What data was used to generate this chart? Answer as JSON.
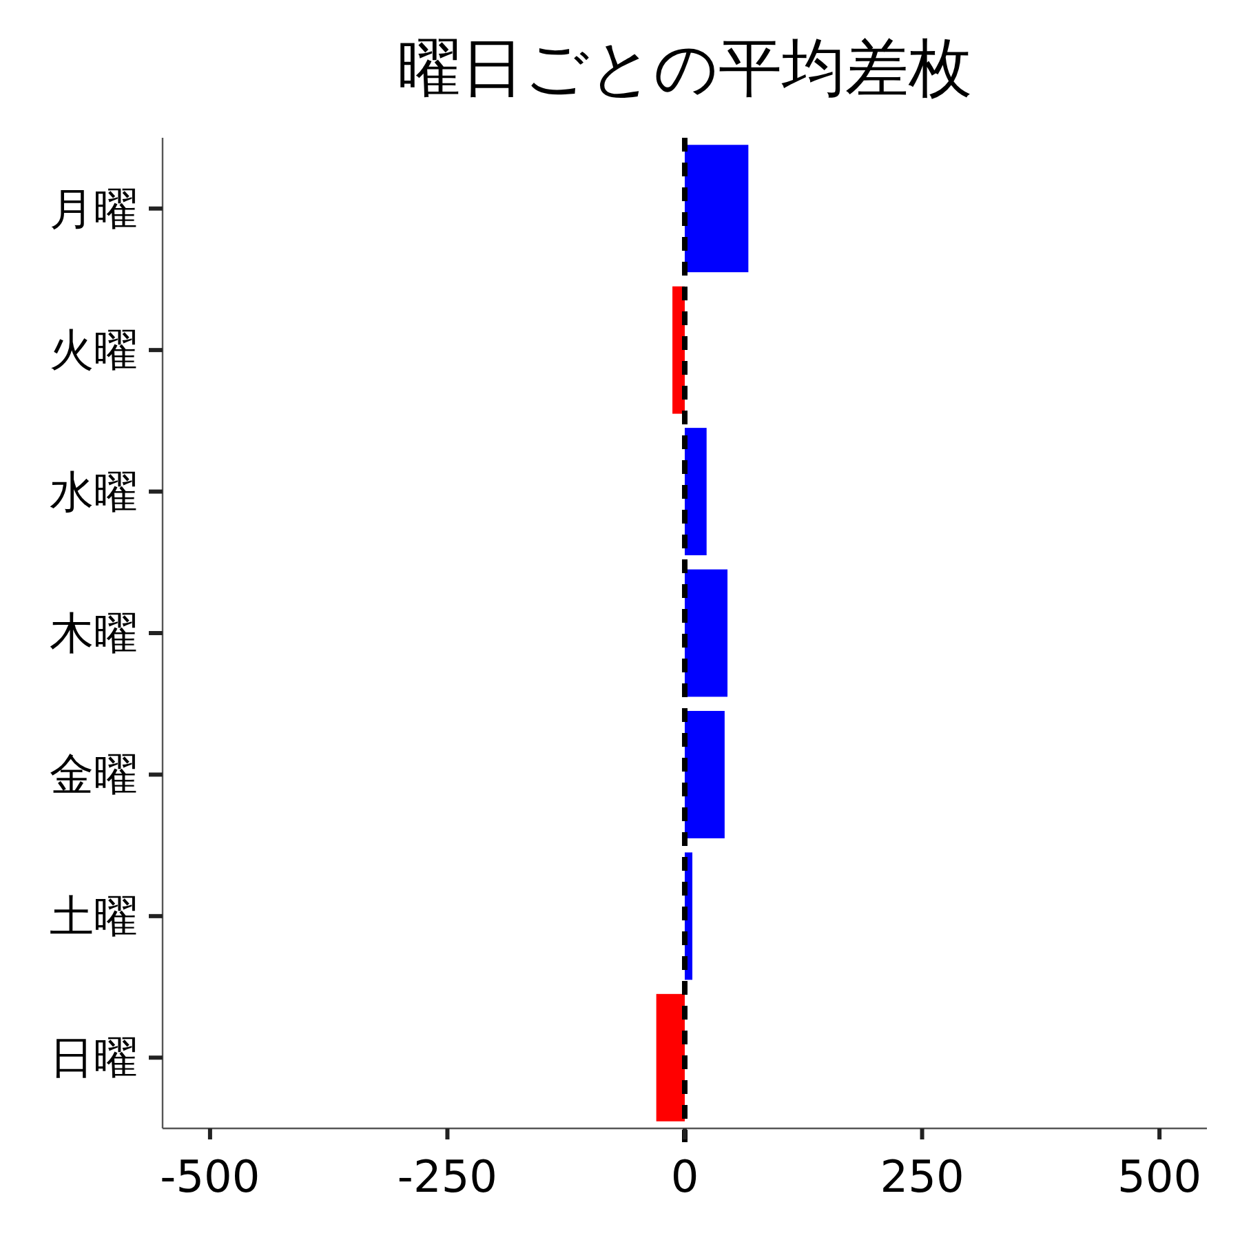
{
  "chart_data": {
    "type": "bar",
    "orientation": "horizontal",
    "title": "曜日ごとの平均差枚",
    "categories": [
      "月曜",
      "火曜",
      "水曜",
      "木曜",
      "金曜",
      "土曜",
      "日曜"
    ],
    "values": [
      67,
      -13,
      23,
      45,
      42,
      8,
      -30
    ],
    "colors": [
      "#0000ff",
      "#ff0000",
      "#0000ff",
      "#0000ff",
      "#0000ff",
      "#0000ff",
      "#ff0000"
    ],
    "xlim": [
      -550,
      550
    ],
    "xticks": [
      -500,
      -250,
      0,
      250,
      500
    ],
    "ref_lines": [
      {
        "axis": "x",
        "value": 0,
        "color": "#000000",
        "line_style": "dashed"
      }
    ]
  }
}
